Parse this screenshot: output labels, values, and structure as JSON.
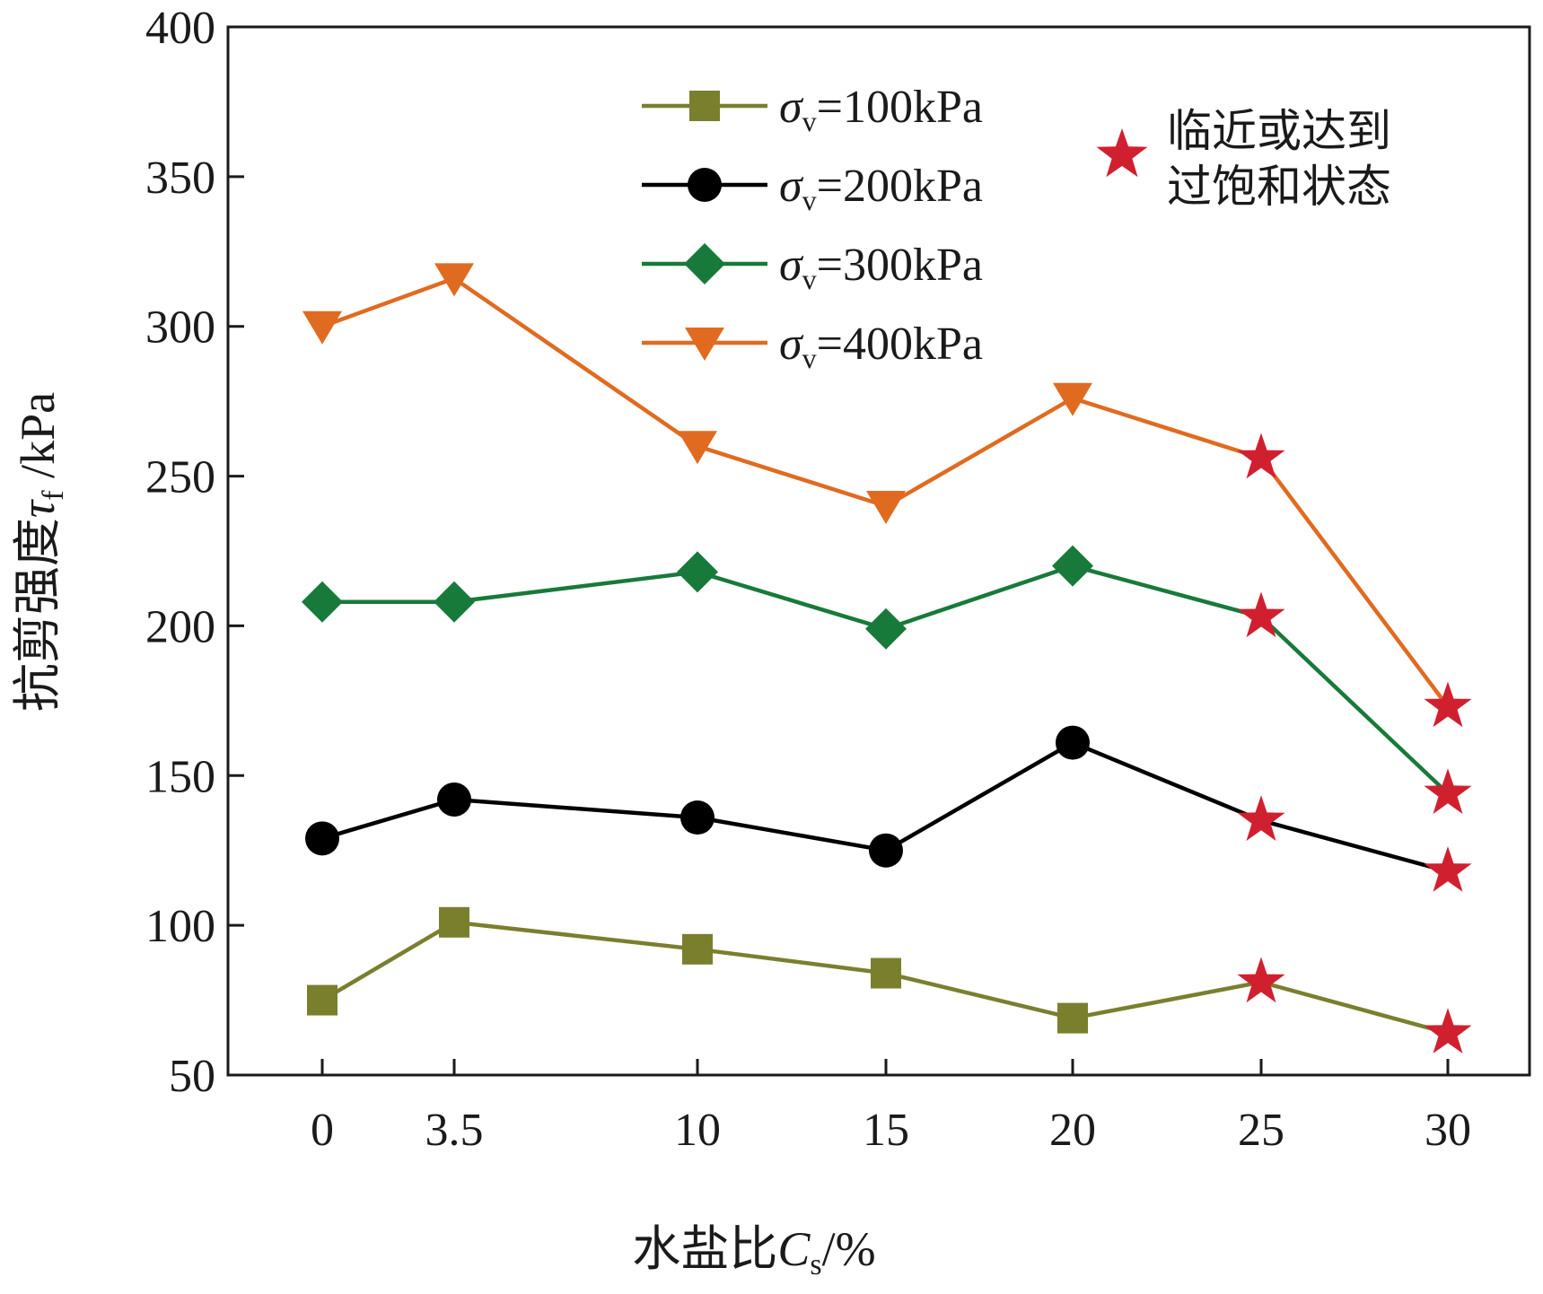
{
  "chart_data": {
    "type": "line",
    "x_positions": [
      0,
      3.5,
      10,
      15,
      20,
      25,
      30
    ],
    "categories": [
      "0",
      "3.5",
      "10",
      "15",
      "20",
      "25",
      "30"
    ],
    "xlabel": {
      "main": "水盐比",
      "var": "C",
      "sub": "s",
      "unit": "/%"
    },
    "ylabel": {
      "main": "抗剪强度",
      "var": "τ",
      "sub": "f",
      "unit": " /kPa"
    },
    "ylim": [
      50,
      400
    ],
    "yticks": [
      50,
      100,
      150,
      200,
      250,
      300,
      350,
      400
    ],
    "grid": false,
    "legend_position": "top-center",
    "series": [
      {
        "name": "100kPa",
        "label_prefix": "σ",
        "label_sub": "v",
        "label_rest": "=100kPa",
        "marker": "square",
        "color": "#7a7f2e",
        "values": [
          75,
          101,
          92,
          84,
          69,
          81,
          64
        ]
      },
      {
        "name": "200kPa",
        "label_prefix": "σ",
        "label_sub": "v",
        "label_rest": "=200kPa",
        "marker": "circle",
        "color": "#000000",
        "values": [
          129,
          142,
          136,
          125,
          161,
          135,
          118
        ]
      },
      {
        "name": "300kPa",
        "label_prefix": "σ",
        "label_sub": "v",
        "label_rest": "=300kPa",
        "marker": "diamond",
        "color": "#187a3a",
        "values": [
          208,
          208,
          218,
          199,
          220,
          203,
          144
        ]
      },
      {
        "name": "400kPa",
        "label_prefix": "σ",
        "label_sub": "v",
        "label_rest": "=400kPa",
        "marker": "triangle-down",
        "color": "#e06b20",
        "values": [
          300,
          316,
          260,
          240,
          276,
          256,
          173
        ]
      }
    ],
    "saturation_markers": {
      "label_line1": "临近或达到",
      "label_line2": "过饱和状态",
      "marker": "star",
      "color": "#d02030",
      "x_indices": [
        5,
        6
      ]
    }
  }
}
